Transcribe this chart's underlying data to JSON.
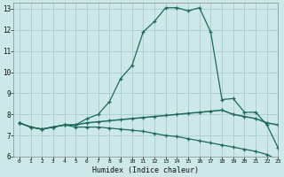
{
  "xlabel": "Humidex (Indice chaleur)",
  "bg_color": "#cce8e8",
  "line_color": "#1a6b5a",
  "grid_color": "#aacccc",
  "series1_x": [
    0,
    1,
    2,
    3,
    4,
    5,
    6,
    7,
    8,
    9,
    10,
    11,
    12,
    13,
    14,
    15,
    16,
    17,
    18,
    19,
    20,
    21,
    22,
    23
  ],
  "series1_y": [
    7.6,
    7.4,
    7.3,
    7.4,
    7.5,
    7.5,
    7.8,
    8.0,
    8.6,
    9.7,
    10.3,
    11.9,
    12.4,
    13.05,
    13.05,
    12.9,
    13.05,
    11.9,
    8.7,
    8.75,
    8.1,
    8.1,
    7.5,
    6.4
  ],
  "series2_x": [
    0,
    1,
    2,
    3,
    4,
    5,
    6,
    7,
    8,
    9,
    10,
    11,
    12,
    13,
    14,
    15,
    16,
    17,
    18,
    19,
    20,
    21,
    22,
    23
  ],
  "series2_y": [
    7.6,
    7.4,
    7.3,
    7.4,
    7.5,
    7.5,
    7.6,
    7.65,
    7.7,
    7.75,
    7.8,
    7.85,
    7.9,
    7.95,
    8.0,
    8.05,
    8.1,
    8.15,
    8.2,
    8.0,
    7.9,
    7.8,
    7.6,
    7.5
  ],
  "series3_x": [
    0,
    1,
    2,
    3,
    4,
    5,
    6,
    7,
    8,
    9,
    10,
    11,
    12,
    13,
    14,
    15,
    16,
    17,
    18,
    19,
    20,
    21,
    22,
    23
  ],
  "series3_y": [
    7.6,
    7.4,
    7.3,
    7.4,
    7.5,
    7.4,
    7.4,
    7.4,
    7.35,
    7.3,
    7.25,
    7.2,
    7.1,
    7.0,
    6.95,
    6.85,
    6.75,
    6.65,
    6.55,
    6.45,
    6.35,
    6.25,
    6.1,
    5.85
  ],
  "xlim": [
    -0.5,
    23
  ],
  "ylim": [
    6,
    13.3
  ],
  "yticks": [
    6,
    7,
    8,
    9,
    10,
    11,
    12,
    13
  ],
  "xticks": [
    0,
    1,
    2,
    3,
    4,
    5,
    6,
    7,
    8,
    9,
    10,
    11,
    12,
    13,
    14,
    15,
    16,
    17,
    18,
    19,
    20,
    21,
    22,
    23
  ]
}
